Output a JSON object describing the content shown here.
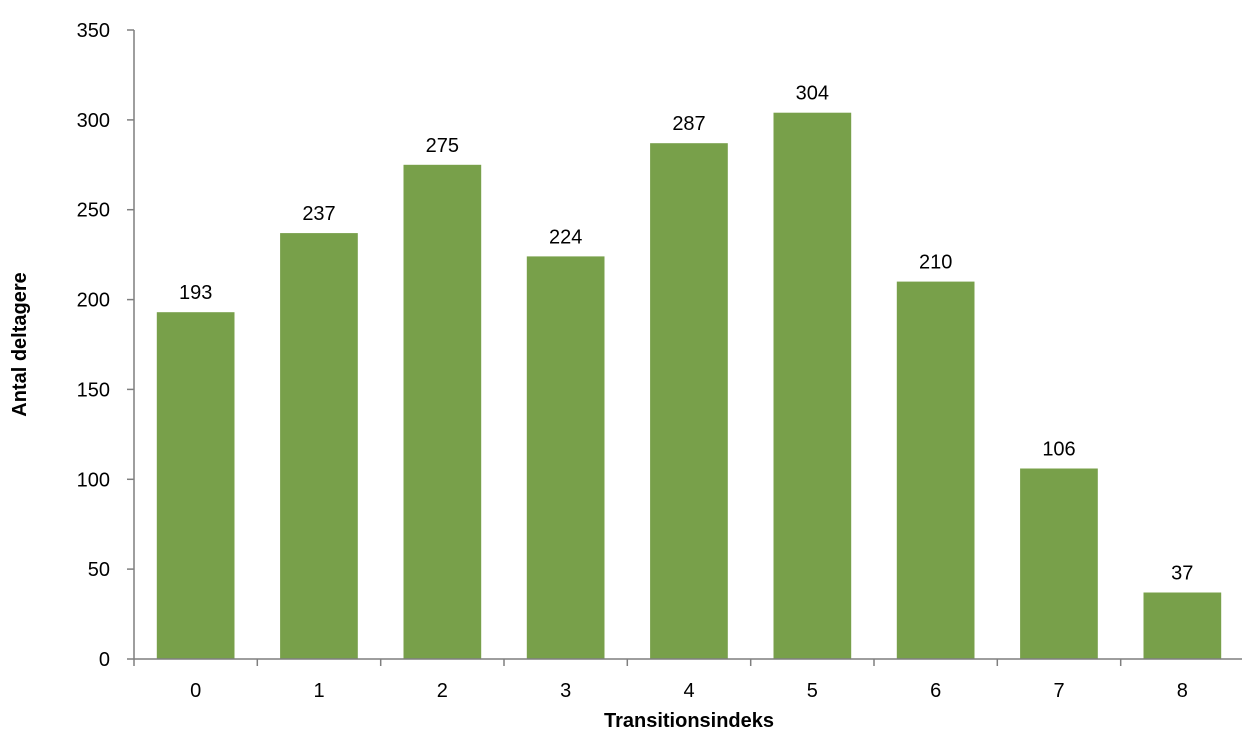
{
  "chart_data": {
    "type": "bar",
    "title": "",
    "xlabel": "Transitionsindeks",
    "ylabel": "Antal deltagere",
    "categories": [
      "0",
      "1",
      "2",
      "3",
      "4",
      "5",
      "6",
      "7",
      "8"
    ],
    "values": [
      193,
      237,
      275,
      224,
      287,
      304,
      210,
      106,
      37
    ],
    "data_labels": [
      "193",
      "237",
      "275",
      "224",
      "287",
      "304",
      "210",
      "106",
      "37"
    ],
    "ylim": [
      0,
      350
    ],
    "yticks": [
      0,
      50,
      100,
      150,
      200,
      250,
      300,
      350
    ],
    "ytick_labels": [
      "0",
      "50",
      "100",
      "150",
      "200",
      "250",
      "300",
      "350"
    ],
    "grid": false,
    "legend": "none",
    "bar_color": "#78a04a"
  }
}
